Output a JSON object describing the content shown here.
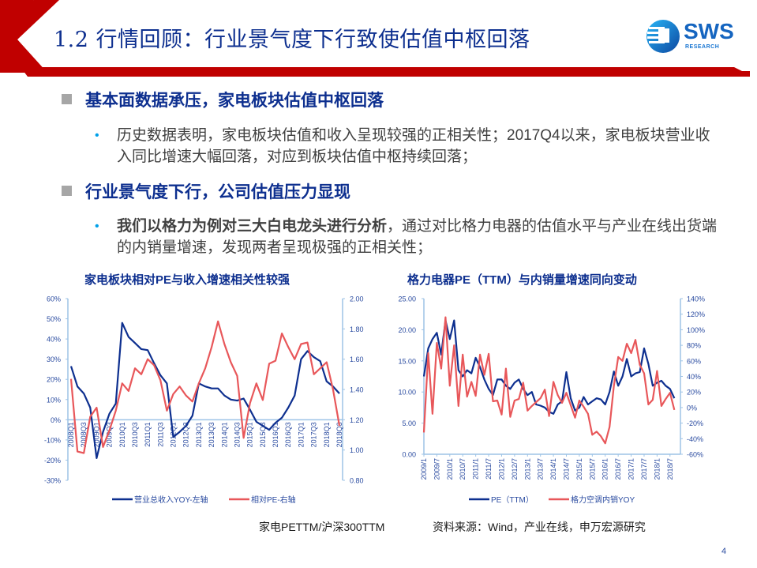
{
  "header": {
    "title": "1.2 行情回顾：行业景气度下行致使估值中枢回落",
    "logo": {
      "name": "SWS",
      "sub": "RESEARCH"
    },
    "accent_color": "#c00000"
  },
  "sections": [
    {
      "heading": "基本面数据承压，家电板块估值中枢回落",
      "bullets": [
        {
          "bold": "",
          "text": "历史数据表明，家电板块估值和收入呈现较强的正相关性；2017Q4以来，家电板块营业收入同比增速大幅回落，对应到板块估值中枢持续回落；"
        }
      ]
    },
    {
      "heading": "行业景气度下行，公司估值压力显现",
      "bullets": [
        {
          "bold": "我们以格力为例对三大白电龙头进行分析",
          "text": "，通过对比格力电器的估值水平与产业在线出货端的内销量增速，发现两者呈现极强的正相关性；"
        }
      ]
    }
  ],
  "footer": {
    "left_note": "家电PETTM/沪深300TTM",
    "source": "资料来源：Wind，产业在线，申万宏源研究",
    "page": "4"
  },
  "chart_data": [
    {
      "type": "line",
      "title": "家电板块相对PE与收入增速相关性较强",
      "xlabel": "",
      "x": [
        "2008Q1",
        "2008Q2",
        "2008Q3",
        "2008Q4",
        "2009Q1",
        "2009Q2",
        "2009Q3",
        "2009Q4",
        "2010Q1",
        "2010Q2",
        "2010Q3",
        "2010Q4",
        "2011Q1",
        "2011Q2",
        "2011Q3",
        "2011Q4",
        "2012Q1",
        "2012Q2",
        "2012Q3",
        "2012Q4",
        "2013Q1",
        "2013Q2",
        "2013Q3",
        "2013Q4",
        "2014Q1",
        "2014Q2",
        "2014Q3",
        "2014Q4",
        "2015Q1",
        "2015Q2",
        "2015Q3",
        "2015Q4",
        "2016Q1",
        "2016Q2",
        "2016Q3",
        "2016Q4",
        "2017Q1",
        "2017Q2",
        "2017Q3",
        "2017Q4",
        "2018Q1",
        "2018Q2",
        "2018Q3"
      ],
      "xtick_labels": [
        "2008Q1",
        "2008Q3",
        "2009Q1",
        "2009Q3",
        "2010Q1",
        "2010Q3",
        "2011Q1",
        "2011Q3",
        "2012Q1",
        "2012Q3",
        "2013Q1",
        "2013Q3",
        "2014Q1",
        "2014Q3",
        "2015Q1",
        "2015Q3",
        "2016Q1",
        "2016Q3",
        "2017Q1",
        "2017Q3",
        "2018Q1",
        "2018Q3"
      ],
      "yleft": {
        "label": "营业总收入YOY-左轴",
        "ticks": [
          "60%",
          "50%",
          "40%",
          "30%",
          "20%",
          "10%",
          "0%",
          "-10%",
          "-20%",
          "-30%"
        ],
        "range": [
          -0.3,
          0.6
        ]
      },
      "yright": {
        "label": "相对PE-右轴",
        "ticks": [
          "2.00",
          "1.80",
          "1.60",
          "1.40",
          "1.20",
          "1.00",
          "0.80"
        ],
        "range": [
          0.8,
          2.0
        ]
      },
      "series": [
        {
          "name": "营业总收入YOY-左轴",
          "axis": "left",
          "color": "#0d2f8f",
          "values": [
            0.265,
            0.165,
            0.13,
            0.06,
            -0.19,
            -0.06,
            0.03,
            0.08,
            0.48,
            0.41,
            0.38,
            0.35,
            0.345,
            0.28,
            0.22,
            0.18,
            -0.085,
            -0.06,
            -0.03,
            0.02,
            0.18,
            0.165,
            0.155,
            0.155,
            0.12,
            0.1,
            0.095,
            0.105,
            0.05,
            -0.01,
            -0.03,
            -0.05,
            -0.015,
            0.01,
            0.06,
            0.12,
            0.3,
            0.34,
            0.31,
            0.29,
            0.19,
            0.165,
            0.13
          ]
        },
        {
          "name": "相对PE-右轴",
          "axis": "right",
          "color": "#e8575a",
          "values": [
            1.47,
            0.99,
            0.98,
            1.22,
            1.28,
            1.02,
            1.13,
            1.26,
            1.44,
            1.39,
            1.54,
            1.5,
            1.6,
            1.56,
            1.46,
            1.26,
            1.37,
            1.42,
            1.36,
            1.32,
            1.44,
            1.54,
            1.68,
            1.85,
            1.7,
            1.58,
            1.49,
            1.08,
            1.31,
            1.44,
            1.33,
            1.57,
            1.59,
            1.77,
            1.68,
            1.6,
            1.7,
            1.71,
            1.5,
            1.54,
            1.58,
            1.4,
            1.16
          ]
        }
      ],
      "legend": [
        "营业总收入YOY-左轴",
        "相对PE-右轴"
      ],
      "legend_position": "bottom",
      "grid": false
    },
    {
      "type": "line",
      "title": "格力电器PE（TTM）与内销量增速同向变动",
      "xtick_labels": [
        "2009/1",
        "2009/7",
        "2010/1",
        "2010/7",
        "2011/1",
        "2011/7",
        "2012/1",
        "2012/7",
        "2013/1",
        "2013/7",
        "2014/1",
        "2014/7",
        "2015/1",
        "2015/7",
        "2016/1",
        "2016/7",
        "2017/1",
        "2017/7",
        "2018/1",
        "2018/7"
      ],
      "yleft": {
        "label": "PE（TTM）",
        "ticks": [
          "25.00",
          "20.00",
          "15.00",
          "10.00",
          "5.00",
          "0.00"
        ],
        "range": [
          0,
          25
        ]
      },
      "yright": {
        "label": "格力空调内销YOY",
        "ticks": [
          "140%",
          "120%",
          "100%",
          "80%",
          "60%",
          "40%",
          "20%",
          "0%",
          "-20%",
          "-40%",
          "-60%"
        ],
        "range": [
          -0.6,
          1.4
        ]
      },
      "series": [
        {
          "name": "PE（TTM）",
          "axis": "left",
          "color": "#0d2f8f",
          "x": [
            "2009/1",
            "2009/3",
            "2009/5",
            "2009/7",
            "2009/9",
            "2009/11",
            "2010/1",
            "2010/3",
            "2010/5",
            "2010/7",
            "2010/9",
            "2010/11",
            "2011/1",
            "2011/3",
            "2011/5",
            "2011/7",
            "2011/9",
            "2011/11",
            "2012/1",
            "2012/3",
            "2012/5",
            "2012/7",
            "2012/9",
            "2012/11",
            "2013/1",
            "2013/3",
            "2013/5",
            "2013/7",
            "2013/9",
            "2013/11",
            "2014/1",
            "2014/3",
            "2014/5",
            "2014/7",
            "2014/9",
            "2014/11",
            "2015/1",
            "2015/3",
            "2015/5",
            "2015/7",
            "2015/9",
            "2015/11",
            "2016/1",
            "2016/3",
            "2016/5",
            "2016/7",
            "2016/9",
            "2016/11",
            "2017/1",
            "2017/3",
            "2017/5",
            "2017/7",
            "2017/9",
            "2017/11",
            "2018/1",
            "2018/3",
            "2018/5",
            "2018/7",
            "2018/9"
          ],
          "values": [
            12.5,
            17,
            18.5,
            19.5,
            16,
            21.5,
            18.5,
            21.5,
            13.5,
            12.5,
            13.5,
            13,
            15.5,
            14,
            12,
            10.5,
            9.5,
            12,
            12,
            11,
            10.5,
            11.5,
            12,
            10.5,
            9.5,
            10,
            8,
            7.8,
            7.5,
            6.8,
            6.5,
            8,
            8.5,
            13.2,
            9,
            7,
            7.5,
            9.2,
            8,
            8.5,
            9,
            8.8,
            8,
            10,
            13.3,
            11,
            12.5,
            15.3,
            12.5,
            13,
            13.2,
            17,
            14.5,
            11,
            11.5,
            11.8,
            11,
            10.5,
            9
          ]
        },
        {
          "name": "格力空调内销YOY",
          "axis": "right",
          "color": "#e8575a",
          "x": [
            "2009/1",
            "2009/3",
            "2009/5",
            "2009/7",
            "2009/9",
            "2009/11",
            "2010/1",
            "2010/3",
            "2010/5",
            "2010/7",
            "2010/9",
            "2010/11",
            "2011/1",
            "2011/3",
            "2011/5",
            "2011/7",
            "2011/9",
            "2011/11",
            "2012/1",
            "2012/3",
            "2012/5",
            "2012/7",
            "2012/9",
            "2012/11",
            "2013/1",
            "2013/3",
            "2013/5",
            "2013/7",
            "2013/9",
            "2013/11",
            "2014/1",
            "2014/3",
            "2014/5",
            "2014/7",
            "2014/9",
            "2014/11",
            "2015/1",
            "2015/3",
            "2015/5",
            "2015/7",
            "2015/9",
            "2015/11",
            "2016/1",
            "2016/3",
            "2016/5",
            "2016/7",
            "2016/9",
            "2016/11",
            "2017/1",
            "2017/3",
            "2017/5",
            "2017/7",
            "2017/9",
            "2017/11",
            "2018/1",
            "2018/3",
            "2018/5",
            "2018/7",
            "2018/9"
          ],
          "values": [
            -0.32,
            0.7,
            -0.08,
            0.83,
            0.5,
            1.16,
            0.28,
            0.8,
            0.02,
            0.68,
            0.14,
            0.33,
            0.15,
            0.68,
            0.42,
            0.69,
            0.08,
            0.09,
            -0.09,
            0.5,
            -0.12,
            0.09,
            0.11,
            0.32,
            -0.04,
            0.02,
            0.07,
            0.12,
            0.23,
            -0.11,
            0.33,
            0.16,
            0.06,
            0.19,
            0.03,
            -0.13,
            0.09,
            0.01,
            -0.08,
            -0.35,
            -0.31,
            -0.37,
            -0.46,
            -0.25,
            0.28,
            0.65,
            0.6,
            0.82,
            0.7,
            0.87,
            0.55,
            0.44,
            0.04,
            0.1,
            0.47,
            0.02,
            0.11,
            0.19,
            -0.03
          ]
        }
      ],
      "legend": [
        "PE（TTM）",
        "格力空调内销YOY"
      ],
      "legend_position": "bottom",
      "grid": false
    }
  ]
}
